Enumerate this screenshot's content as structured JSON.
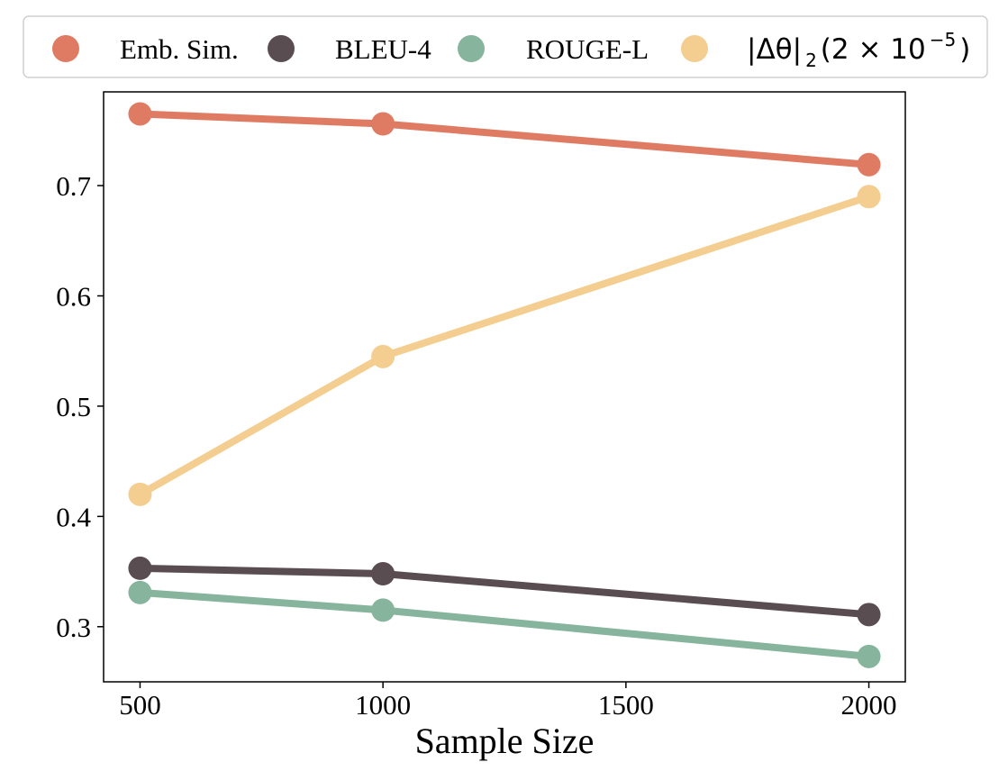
{
  "chart_data": {
    "type": "line",
    "x": [
      500,
      1000,
      2000
    ],
    "xlabel": "Sample Size",
    "ylabel": "",
    "xlim": [
      425,
      2075
    ],
    "ylim": [
      0.25,
      0.785
    ],
    "xticks": [
      500,
      1000,
      1500,
      2000
    ],
    "xtick_labels": [
      "500",
      "1000",
      "1500",
      "2000"
    ],
    "yticks": [
      0.3,
      0.4,
      0.5,
      0.6,
      0.7
    ],
    "ytick_labels": [
      "0.3",
      "0.4",
      "0.5",
      "0.6",
      "0.7"
    ],
    "grid": false,
    "legend_position": "top",
    "series": [
      {
        "name": "Emb. Sim.",
        "color": "#E07B63",
        "values": [
          0.765,
          0.756,
          0.719
        ]
      },
      {
        "name": "BLEU-4",
        "color": "#5A4D52",
        "values": [
          0.353,
          0.348,
          0.311
        ]
      },
      {
        "name": "ROUGE-L",
        "color": "#86B49C",
        "values": [
          0.331,
          0.315,
          0.273
        ]
      },
      {
        "name": "|Δθ|₂(2 × 10⁻⁵)",
        "color": "#F3CE90",
        "values": [
          0.42,
          0.545,
          0.69
        ]
      }
    ]
  },
  "legend": {
    "emb": "Emb. Sim.",
    "bleu": "BLEU-4",
    "rouge": "ROUGE-L",
    "theta_main": "|Δθ|",
    "theta_sub": "2",
    "theta_paren_open": "(2 × 10",
    "theta_exp": "−5",
    "theta_paren_close": ")"
  }
}
